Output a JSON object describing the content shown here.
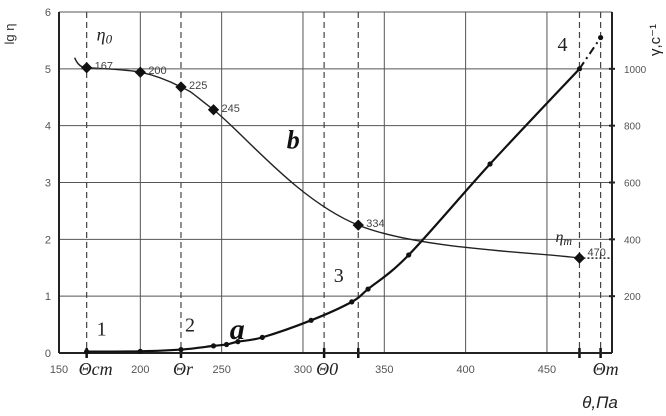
{
  "chart_data": {
    "type": "line",
    "xlabel": "θ,Па",
    "ylabel_left": "lg η",
    "ylabel_right": "γ,с⁻¹",
    "xlim": [
      150,
      490
    ],
    "ylim_left": [
      0,
      6
    ],
    "ylim_right": [
      0,
      1200
    ],
    "x_ticks": [
      150,
      200,
      250,
      300,
      350,
      400,
      450
    ],
    "y_left_ticks": [
      0,
      1,
      2,
      3,
      4,
      5,
      6
    ],
    "y_right_ticks": [
      200,
      400,
      600,
      800,
      1000
    ],
    "grid": true,
    "reference_lines": [
      {
        "x": 167,
        "label": "Θcm"
      },
      {
        "x": 225,
        "label": "Θr"
      },
      {
        "x": 313,
        "label": "Θ0"
      },
      {
        "x": 334,
        "label": ""
      },
      {
        "x": 470,
        "label": ""
      },
      {
        "x": 483,
        "label": "Θm"
      }
    ],
    "series": [
      {
        "name": "b",
        "axis": "left",
        "start_label": "η0",
        "end_label": "ηm",
        "points": [
          {
            "x": 167,
            "y": 5.02,
            "label": "167"
          },
          {
            "x": 200,
            "y": 4.94,
            "label": "200"
          },
          {
            "x": 225,
            "y": 4.68,
            "label": "225"
          },
          {
            "x": 245,
            "y": 4.28,
            "label": "245"
          },
          {
            "x": 334,
            "y": 2.25,
            "label": "334"
          },
          {
            "x": 470,
            "y": 1.67,
            "label": "470"
          }
        ]
      },
      {
        "name": "a",
        "axis": "right",
        "points": [
          {
            "x": 167,
            "y": 5
          },
          {
            "x": 200,
            "y": 6
          },
          {
            "x": 225,
            "y": 12
          },
          {
            "x": 245,
            "y": 25
          },
          {
            "x": 253,
            "y": 30
          },
          {
            "x": 260,
            "y": 40
          },
          {
            "x": 275,
            "y": 55
          },
          {
            "x": 305,
            "y": 115
          },
          {
            "x": 330,
            "y": 180
          },
          {
            "x": 340,
            "y": 225
          },
          {
            "x": 365,
            "y": 345
          },
          {
            "x": 415,
            "y": 665
          },
          {
            "x": 470,
            "y": 1000
          },
          {
            "x": 483,
            "y": 1110
          }
        ],
        "region_labels": [
          {
            "x": 167,
            "text": "1"
          },
          {
            "x": 225,
            "text": "2"
          },
          {
            "x": 330,
            "text": "3"
          },
          {
            "x": 470,
            "text": "4"
          }
        ]
      }
    ]
  }
}
